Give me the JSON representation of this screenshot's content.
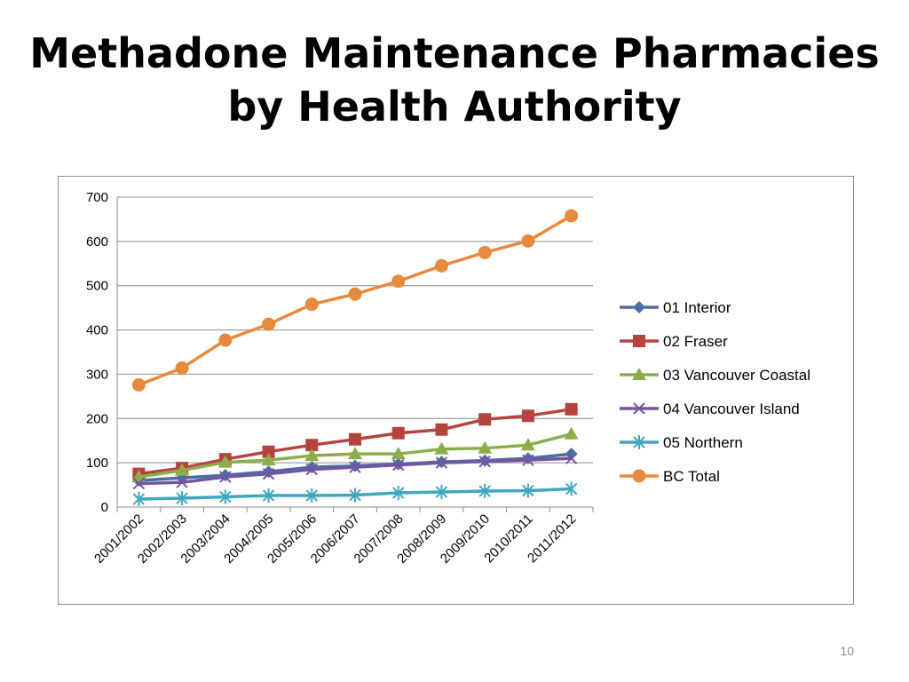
{
  "slide": {
    "title_line1": "Methadone Maintenance Pharmacies",
    "title_line2": "by Health Authority",
    "page_number": "10"
  },
  "chart_data": {
    "type": "line",
    "title": "",
    "xlabel": "",
    "ylabel": "",
    "ylim": [
      0,
      700
    ],
    "yticks": [
      0,
      100,
      200,
      300,
      400,
      500,
      600,
      700
    ],
    "grid": "horizontal",
    "legend_position": "right",
    "categories": [
      "2001/2002",
      "2002/2003",
      "2003/2004",
      "2004/2005",
      "2005/2006",
      "2006/2007",
      "2007/2008",
      "2008/2009",
      "2009/2010",
      "2010/2011",
      "2011/2012"
    ],
    "series": [
      {
        "name": "01 Interior",
        "color": "#4a6fa5",
        "marker": "diamond",
        "values": [
          60,
          66,
          72,
          80,
          90,
          93,
          97,
          102,
          105,
          110,
          120
        ]
      },
      {
        "name": "02 Fraser",
        "color": "#b5443f",
        "marker": "square",
        "values": [
          75,
          88,
          108,
          125,
          140,
          153,
          167,
          175,
          198,
          206,
          221
        ]
      },
      {
        "name": "03 Vancouver Coastal",
        "color": "#8cae4a",
        "marker": "triangle",
        "values": [
          68,
          83,
          101,
          106,
          116,
          120,
          120,
          131,
          133,
          140,
          165
        ]
      },
      {
        "name": "04 Vancouver Island",
        "color": "#7356a0",
        "marker": "x",
        "values": [
          53,
          56,
          68,
          75,
          85,
          90,
          95,
          100,
          103,
          106,
          110
        ]
      },
      {
        "name": "05 Northern",
        "color": "#3fa7be",
        "marker": "star",
        "values": [
          18,
          20,
          23,
          26,
          26,
          27,
          32,
          34,
          36,
          37,
          41
        ]
      },
      {
        "name": "BC Total",
        "color": "#e88a3b",
        "marker": "circle",
        "values": [
          276,
          314,
          377,
          413,
          458,
          481,
          510,
          545,
          575,
          601,
          658
        ]
      }
    ]
  }
}
